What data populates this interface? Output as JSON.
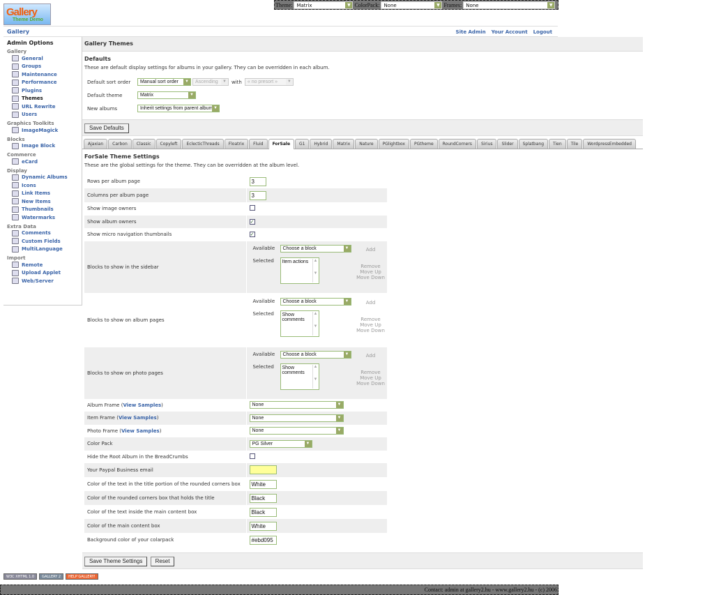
{
  "logo": {
    "text": "Gallery",
    "sub": "Theme Demo"
  },
  "topbar": {
    "theme_label": "Theme:",
    "theme": "Matrix",
    "colorpack_label": "ColorPack:",
    "colorpack": "None",
    "frames_label": "Frames:",
    "frames": "None"
  },
  "breadcrumb": "Gallery",
  "system_links": [
    "Site Admin",
    "Your Account",
    "Logout"
  ],
  "sidebar": {
    "title": "Admin Options",
    "groups": [
      {
        "label": "Gallery",
        "items": [
          "General",
          "Groups",
          "Maintenance",
          "Performance",
          "Plugins",
          "Themes",
          "URL Rewrite",
          "Users"
        ]
      },
      {
        "label": "Graphics Toolkits",
        "items": [
          "ImageMagick"
        ]
      },
      {
        "label": "Blocks",
        "items": [
          "Image Block"
        ]
      },
      {
        "label": "Commerce",
        "items": [
          "eCard"
        ]
      },
      {
        "label": "Display",
        "items": [
          "Dynamic Albums",
          "Icons",
          "Link Items",
          "New Items",
          "Thumbnails",
          "Watermarks"
        ]
      },
      {
        "label": "Extra Data",
        "items": [
          "Comments",
          "Custom Fields",
          "MultiLanguage"
        ]
      },
      {
        "label": "Import",
        "items": [
          "Remote",
          "Upload Applet",
          "Web/Server"
        ]
      }
    ],
    "current": "Themes"
  },
  "main": {
    "title": "Gallery Themes",
    "defaults": {
      "heading": "Defaults",
      "description": "These are default display settings for albums in your gallery. They can be overridden in each album.",
      "sort_label": "Default sort order",
      "sort_value": "Manual sort order",
      "direction": "Ascending",
      "with_label": "with",
      "presort": "« no presort »",
      "theme_label": "Default theme",
      "theme_value": "Matrix",
      "new_label": "New albums",
      "new_value": "Inherit settings from parent album",
      "save": "Save Defaults"
    },
    "tabs": [
      "Ajaxian",
      "Carbon",
      "Classic",
      "Copyleft",
      "EclecticThreads",
      "Floatrix",
      "Fluid",
      "ForSale",
      "G1",
      "Hybrid",
      "Matrix",
      "Nature",
      "PGlightbox",
      "PGtheme",
      "RoundCorners",
      "Sirius",
      "Slider",
      "Splatbang",
      "Tien",
      "Tile",
      "WordpressEmbedded"
    ],
    "active_tab": "ForSale",
    "settings": {
      "heading": "ForSale Theme Settings",
      "description": "These are the global settings for the theme. They can be overridden at the album level.",
      "rows": [
        {
          "label": "Rows per album page",
          "type": "text",
          "value": "3"
        },
        {
          "label": "Columns per album page",
          "type": "text",
          "value": "3"
        },
        {
          "label": "Show image owners",
          "type": "check",
          "checked": false
        },
        {
          "label": "Show album owners",
          "type": "check",
          "checked": true
        },
        {
          "label": "Show micro navigation thumbnails",
          "type": "check",
          "checked": true
        },
        {
          "label": "Blocks to show in the sidebar",
          "type": "blocks",
          "selected": "Item actions"
        },
        {
          "label": "Blocks to show on album pages",
          "type": "blocks",
          "selected": "Show comments"
        },
        {
          "label": "Blocks to show on photo pages",
          "type": "blocks",
          "selected": "Show comments"
        },
        {
          "label": "Album Frame",
          "link": "View Samples",
          "type": "select",
          "value": "None"
        },
        {
          "label": "Item Frame",
          "link": "View Samples",
          "type": "select",
          "value": "None"
        },
        {
          "label": "Photo Frame",
          "link": "View Samples",
          "type": "select",
          "value": "None"
        },
        {
          "label": "Color Pack",
          "type": "select-small",
          "value": "PG Silver"
        },
        {
          "label": "Hide the Root Album in the BreadCrumbs",
          "type": "check",
          "checked": false
        },
        {
          "label": "Your Paypal Business email",
          "type": "text-yellow",
          "value": ""
        },
        {
          "label": "Color of the text in the title portion of the rounded corners box",
          "type": "text",
          "value": "White"
        },
        {
          "label": "Color of the rounded corners box that holds the title",
          "type": "text",
          "value": "Black"
        },
        {
          "label": "Color of the text inside the main content box",
          "type": "text",
          "value": "Black"
        },
        {
          "label": "Color of the main content box",
          "type": "text",
          "value": "White"
        },
        {
          "label": "Background color of your colarpack",
          "type": "text",
          "value": "#ebd095"
        }
      ],
      "blocks": {
        "available": "Available",
        "selected": "Selected",
        "choose": "Choose a block",
        "add": "Add",
        "remove": "Remove",
        "up": "Move Up",
        "down": "Move Down"
      },
      "save": "Save Theme Settings",
      "reset": "Reset"
    }
  },
  "badges": [
    "W3C XHTML 1.0",
    "GALLERY 2",
    "HELP GALLERY!"
  ],
  "footer": "Contact: admin at gallery2.hu - www.gallery2.hu - (c) 2006",
  "colors": {
    "link": "#3a64a8",
    "bar": "#eeeeee",
    "select_border": "#99bb77",
    "paypal_field": "#ffff99"
  }
}
